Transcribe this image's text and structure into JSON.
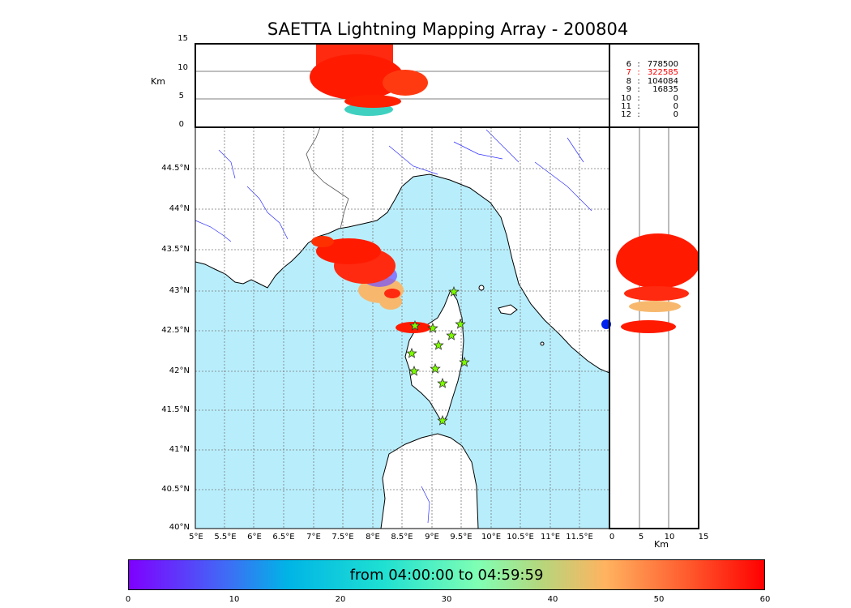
{
  "title": "SAETTA Lightning Mapping Array - 200804",
  "colorbar": {
    "label": "from 04:00:00 to 04:59:59",
    "ticks": [
      "0",
      "10",
      "20",
      "30",
      "40",
      "50",
      "60"
    ]
  },
  "altitude_panel": {
    "ylabel": "Km",
    "yticks": [
      "15",
      "10",
      "5",
      "0"
    ]
  },
  "side_panel": {
    "xlabel": "Km",
    "xticks": [
      "0",
      "5",
      "10",
      "15"
    ]
  },
  "map": {
    "lat_ticks": [
      "44.5°N",
      "44°N",
      "43.5°N",
      "43°N",
      "42.5°N",
      "42°N",
      "41.5°N",
      "41°N",
      "40.5°N",
      "40°N"
    ],
    "lon_ticks": [
      "5°E",
      "5.5°E",
      "6°E",
      "6.5°E",
      "7°E",
      "7.5°E",
      "8°E",
      "8.5°E",
      "9°E",
      "9.5°E",
      "10°E",
      "10.5°E",
      "11°E",
      "11.5°E"
    ],
    "sea_color": "#b8eefc",
    "station_icon": "star-icon"
  },
  "station_counts": [
    {
      "stations": "6",
      "sep": ":",
      "count": "778500",
      "highlight": false
    },
    {
      "stations": "7",
      "sep": ":",
      "count": "322585",
      "highlight": true
    },
    {
      "stations": "8",
      "sep": ":",
      "count": "104084",
      "highlight": false
    },
    {
      "stations": "9",
      "sep": ":",
      "count": "16835",
      "highlight": false
    },
    {
      "stations": "10",
      "sep": ":",
      "count": "0",
      "highlight": false
    },
    {
      "stations": "11",
      "sep": ":",
      "count": "0",
      "highlight": false
    },
    {
      "stations": "12",
      "sep": ":",
      "count": "0",
      "highlight": false
    }
  ]
}
